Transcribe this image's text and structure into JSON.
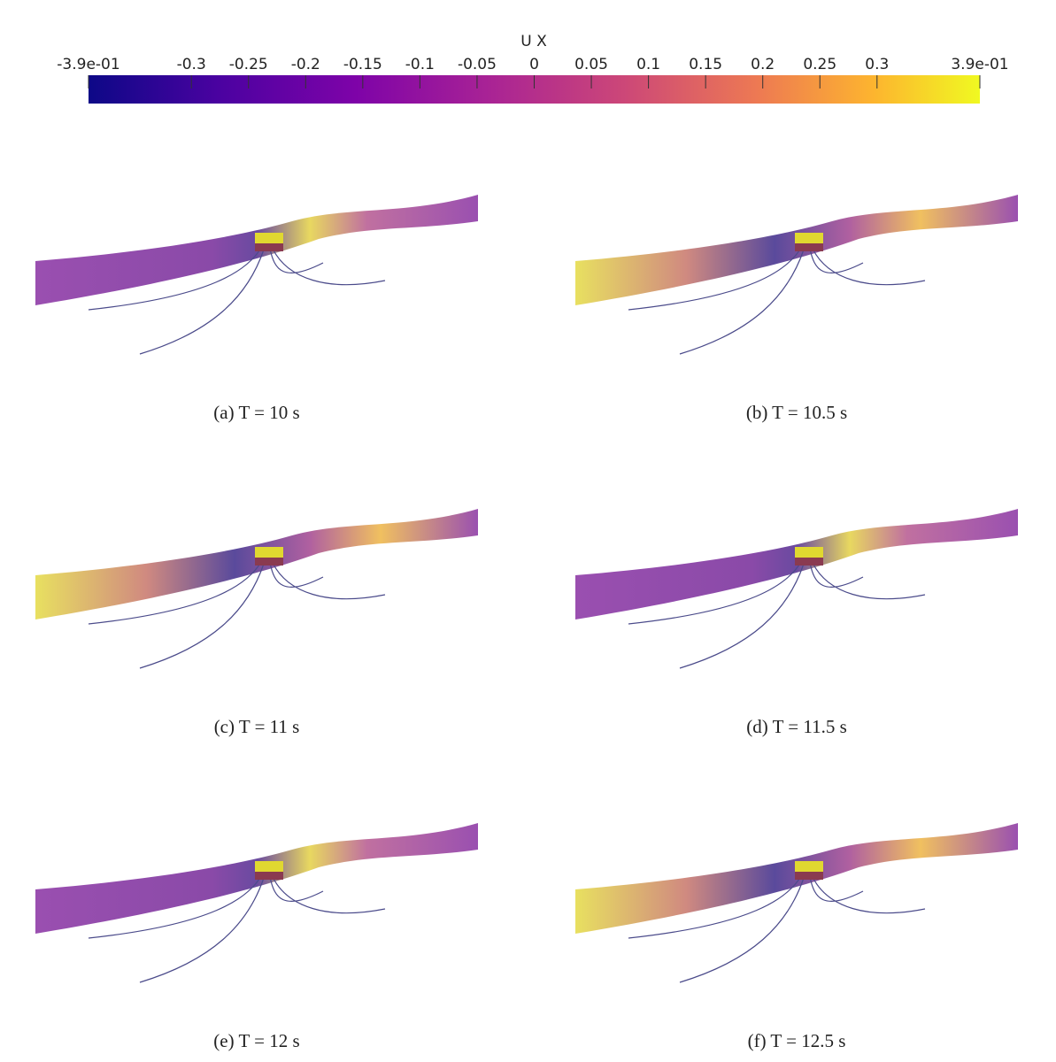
{
  "colorbar": {
    "title": "U X",
    "lim": [
      -0.39,
      0.39
    ],
    "ticks": [
      {
        "value": -0.39,
        "label": "-3.9e-01"
      },
      -0.3,
      -0.25,
      -0.2,
      -0.15,
      -0.1,
      -0.05,
      0,
      0.05,
      0.1,
      0.15,
      0.2,
      0.25,
      0.3,
      {
        "value": 0.39,
        "label": "3.9e-01"
      }
    ]
  },
  "panels": [
    {
      "caption": "(a) T = 10 s"
    },
    {
      "caption": "(b) T = 10.5 s"
    },
    {
      "caption": "(c) T = 11 s"
    },
    {
      "caption": "(d) T = 11.5 s"
    },
    {
      "caption": "(e) T = 12 s"
    },
    {
      "caption": "(f) T = 12.5 s"
    }
  ]
}
